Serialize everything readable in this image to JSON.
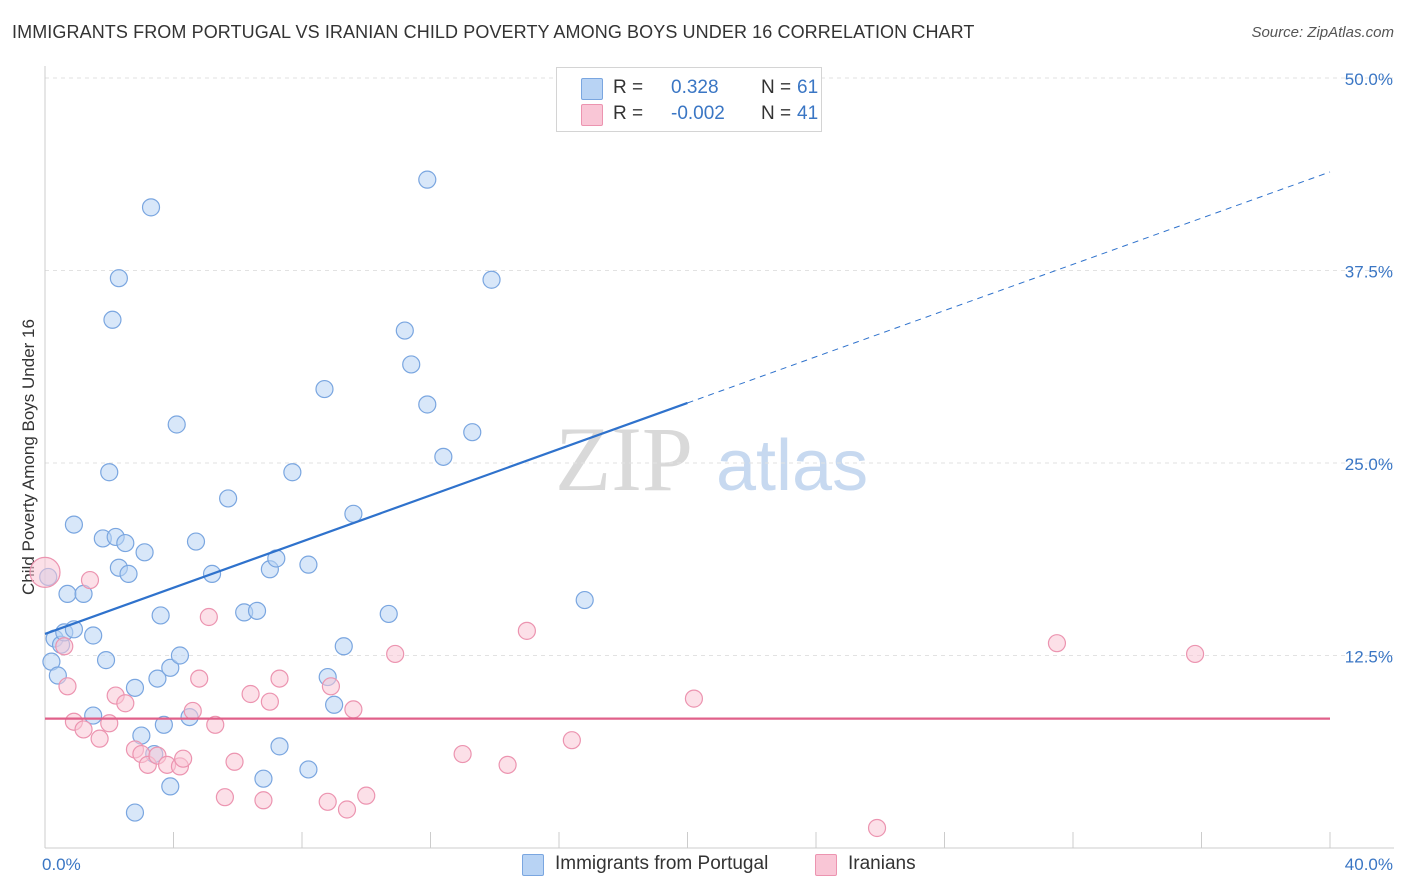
{
  "title": "IMMIGRANTS FROM PORTUGAL VS IRANIAN CHILD POVERTY AMONG BOYS UNDER 16 CORRELATION CHART",
  "source": "Source: ZipAtlas.com",
  "watermark": {
    "zip": "ZIP",
    "atlas": "atlas"
  },
  "legend": {
    "r_label": "R =",
    "n_label": "N =",
    "entries": [
      {
        "r": "0.328",
        "n": "61",
        "fill": "#b8d3f4",
        "stroke": "#7aa6e0"
      },
      {
        "r": "-0.002",
        "n": "41",
        "fill": "#f9c6d6",
        "stroke": "#ec94b0"
      }
    ]
  },
  "chart_data": {
    "type": "scatter",
    "title": "IMMIGRANTS FROM PORTUGAL VS IRANIAN CHILD POVERTY AMONG BOYS UNDER 16 CORRELATION CHART",
    "xlabel": "",
    "ylabel": "Child Poverty Among Boys Under 16",
    "xlim": [
      0,
      40
    ],
    "ylim": [
      0,
      50
    ],
    "x_tick_labels": [
      {
        "value": 0,
        "label": "0.0%"
      },
      {
        "value": 40,
        "label": "40.0%"
      }
    ],
    "y_tick_labels": [
      {
        "value": 12.5,
        "label": "12.5%"
      },
      {
        "value": 25,
        "label": "25.0%"
      },
      {
        "value": 37.5,
        "label": "37.5%"
      },
      {
        "value": 50,
        "label": "50.0%"
      }
    ],
    "grid": true,
    "series": [
      {
        "name": "Immigrants from Portugal",
        "color": "#7aa6e0",
        "fill": "#b8d3f4",
        "trend": {
          "x0": 0,
          "y0": 13.9,
          "x1": 20,
          "y1": 28.9,
          "dashed_to_x": 40,
          "dashed_to_y": 43.9,
          "color": "#2f72cc"
        },
        "points": [
          [
            0.1,
            17.6
          ],
          [
            0.2,
            12.1
          ],
          [
            0.3,
            13.6
          ],
          [
            0.4,
            11.2
          ],
          [
            0.5,
            13.2
          ],
          [
            0.6,
            14.0
          ],
          [
            0.7,
            16.5
          ],
          [
            0.9,
            21.0
          ],
          [
            0.9,
            14.2
          ],
          [
            1.2,
            16.5
          ],
          [
            1.5,
            13.8
          ],
          [
            1.5,
            8.6
          ],
          [
            1.8,
            20.1
          ],
          [
            1.9,
            12.2
          ],
          [
            2.0,
            24.4
          ],
          [
            2.1,
            34.3
          ],
          [
            2.2,
            20.2
          ],
          [
            2.3,
            18.2
          ],
          [
            2.3,
            37.0
          ],
          [
            2.5,
            19.8
          ],
          [
            2.6,
            17.8
          ],
          [
            2.8,
            2.3
          ],
          [
            2.8,
            10.4
          ],
          [
            3.0,
            7.3
          ],
          [
            3.1,
            19.2
          ],
          [
            3.3,
            41.6
          ],
          [
            3.4,
            6.1
          ],
          [
            3.5,
            11.0
          ],
          [
            3.6,
            15.1
          ],
          [
            3.7,
            8.0
          ],
          [
            3.9,
            4.0
          ],
          [
            3.9,
            11.7
          ],
          [
            4.1,
            27.5
          ],
          [
            4.2,
            12.5
          ],
          [
            4.5,
            8.5
          ],
          [
            4.7,
            19.9
          ],
          [
            5.2,
            17.8
          ],
          [
            5.7,
            22.7
          ],
          [
            6.2,
            15.3
          ],
          [
            6.6,
            15.4
          ],
          [
            6.8,
            4.5
          ],
          [
            7.0,
            18.1
          ],
          [
            7.2,
            18.8
          ],
          [
            7.3,
            6.6
          ],
          [
            7.7,
            24.4
          ],
          [
            8.2,
            5.1
          ],
          [
            8.2,
            18.4
          ],
          [
            8.7,
            29.8
          ],
          [
            8.8,
            11.1
          ],
          [
            9.0,
            9.3
          ],
          [
            9.3,
            13.1
          ],
          [
            9.6,
            21.7
          ],
          [
            10.7,
            15.2
          ],
          [
            11.2,
            33.6
          ],
          [
            11.4,
            31.4
          ],
          [
            11.9,
            28.8
          ],
          [
            11.9,
            43.4
          ],
          [
            12.4,
            25.4
          ],
          [
            13.3,
            27.0
          ],
          [
            13.9,
            36.9
          ],
          [
            16.8,
            16.1
          ]
        ]
      },
      {
        "name": "Iranians",
        "color": "#ec94b0",
        "fill": "#f9c6d6",
        "trend": {
          "x0": 0,
          "y0": 8.4,
          "x1": 40,
          "y1": 8.4,
          "color": "#e0608a"
        },
        "points": [
          [
            0.0,
            17.9
          ],
          [
            0.6,
            13.1
          ],
          [
            0.7,
            10.5
          ],
          [
            0.9,
            8.2
          ],
          [
            1.2,
            7.7
          ],
          [
            1.4,
            17.4
          ],
          [
            1.7,
            7.1
          ],
          [
            2.0,
            8.1
          ],
          [
            2.2,
            9.9
          ],
          [
            2.5,
            9.4
          ],
          [
            2.8,
            6.4
          ],
          [
            3.0,
            6.1
          ],
          [
            3.2,
            5.4
          ],
          [
            3.5,
            6.0
          ],
          [
            3.8,
            5.4
          ],
          [
            4.2,
            5.3
          ],
          [
            4.3,
            5.8
          ],
          [
            4.6,
            8.9
          ],
          [
            4.8,
            11.0
          ],
          [
            5.1,
            15.0
          ],
          [
            5.3,
            8.0
          ],
          [
            5.6,
            3.3
          ],
          [
            5.9,
            5.6
          ],
          [
            6.4,
            10.0
          ],
          [
            6.8,
            3.1
          ],
          [
            7.0,
            9.5
          ],
          [
            7.3,
            11.0
          ],
          [
            8.8,
            3.0
          ],
          [
            8.9,
            10.5
          ],
          [
            9.4,
            2.5
          ],
          [
            9.6,
            9.0
          ],
          [
            10.0,
            3.4
          ],
          [
            10.9,
            12.6
          ],
          [
            13.0,
            6.1
          ],
          [
            14.4,
            5.4
          ],
          [
            15.0,
            14.1
          ],
          [
            16.4,
            7.0
          ],
          [
            20.2,
            9.7
          ],
          [
            25.9,
            1.3
          ],
          [
            31.5,
            13.3
          ],
          [
            35.8,
            12.6
          ]
        ]
      }
    ]
  }
}
